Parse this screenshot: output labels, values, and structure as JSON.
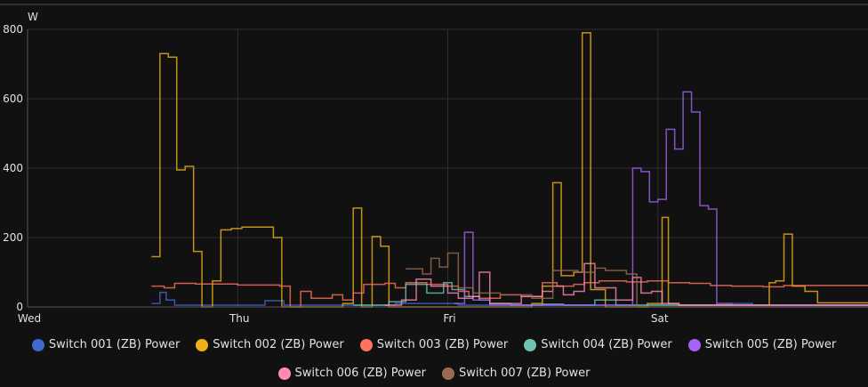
{
  "chart_data": {
    "type": "line",
    "step": true,
    "ylabel": "W",
    "ylim": [
      0,
      800
    ],
    "yticks": [
      0,
      200,
      400,
      600,
      800
    ],
    "xlim": [
      0,
      4
    ],
    "xticks": [
      {
        "x": 0,
        "label": "Wed"
      },
      {
        "x": 1,
        "label": "Thu"
      },
      {
        "x": 2,
        "label": "Fri"
      },
      {
        "x": 3,
        "label": "Sat"
      }
    ],
    "grid": true,
    "legend_position": "bottom",
    "series": [
      {
        "name": "Switch 001 (ZB) Power",
        "color": "#4269d0",
        "points": [
          [
            0.59,
            10
          ],
          [
            0.63,
            42
          ],
          [
            0.66,
            20
          ],
          [
            0.7,
            5
          ],
          [
            1.1,
            5
          ],
          [
            1.13,
            18
          ],
          [
            1.22,
            5
          ],
          [
            1.6,
            5
          ],
          [
            1.75,
            10
          ],
          [
            2.05,
            5
          ],
          [
            2.5,
            5
          ],
          [
            3.35,
            10
          ],
          [
            3.45,
            5
          ],
          [
            4,
            5
          ]
        ]
      },
      {
        "name": "Switch 002 (ZB) Power",
        "color": "#efb118",
        "points": [
          [
            0.59,
            145
          ],
          [
            0.63,
            730
          ],
          [
            0.67,
            720
          ],
          [
            0.71,
            395
          ],
          [
            0.75,
            405
          ],
          [
            0.79,
            160
          ],
          [
            0.83,
            0
          ],
          [
            0.88,
            75
          ],
          [
            0.92,
            222
          ],
          [
            0.97,
            226
          ],
          [
            1.02,
            230
          ],
          [
            1.17,
            200
          ],
          [
            1.21,
            0
          ],
          [
            1.4,
            0
          ],
          [
            1.5,
            10
          ],
          [
            1.55,
            285
          ],
          [
            1.59,
            0
          ],
          [
            1.64,
            203
          ],
          [
            1.68,
            175
          ],
          [
            1.72,
            0
          ],
          [
            2.35,
            0
          ],
          [
            2.4,
            10
          ],
          [
            2.45,
            60
          ],
          [
            2.5,
            358
          ],
          [
            2.54,
            90
          ],
          [
            2.6,
            100
          ],
          [
            2.64,
            790
          ],
          [
            2.68,
            50
          ],
          [
            2.75,
            0
          ],
          [
            2.9,
            0
          ],
          [
            2.95,
            10
          ],
          [
            3.02,
            258
          ],
          [
            3.05,
            10
          ],
          [
            3.1,
            5
          ],
          [
            3.5,
            5
          ],
          [
            3.53,
            70
          ],
          [
            3.56,
            75
          ],
          [
            3.6,
            210
          ],
          [
            3.64,
            60
          ],
          [
            3.7,
            45
          ],
          [
            3.76,
            12
          ],
          [
            4,
            12
          ]
        ]
      },
      {
        "name": "Switch 003 (ZB) Power",
        "color": "#ff725c",
        "points": [
          [
            0.59,
            60
          ],
          [
            0.65,
            55
          ],
          [
            0.7,
            68
          ],
          [
            0.8,
            66
          ],
          [
            0.9,
            66
          ],
          [
            1.0,
            63
          ],
          [
            1.1,
            63
          ],
          [
            1.2,
            60
          ],
          [
            1.25,
            0
          ],
          [
            1.3,
            45
          ],
          [
            1.35,
            25
          ],
          [
            1.45,
            35
          ],
          [
            1.5,
            20
          ],
          [
            1.55,
            40
          ],
          [
            1.6,
            65
          ],
          [
            1.7,
            68
          ],
          [
            1.75,
            55
          ],
          [
            1.8,
            70
          ],
          [
            1.9,
            65
          ],
          [
            2.0,
            60
          ],
          [
            2.05,
            45
          ],
          [
            2.1,
            30
          ],
          [
            2.15,
            25
          ],
          [
            2.25,
            35
          ],
          [
            2.35,
            30
          ],
          [
            2.45,
            70
          ],
          [
            2.52,
            60
          ],
          [
            2.6,
            65
          ],
          [
            2.65,
            70
          ],
          [
            2.72,
            75
          ],
          [
            2.85,
            72
          ],
          [
            2.95,
            75
          ],
          [
            3.05,
            70
          ],
          [
            3.15,
            68
          ],
          [
            3.25,
            62
          ],
          [
            3.35,
            60
          ],
          [
            3.5,
            58
          ],
          [
            3.6,
            62
          ],
          [
            4,
            62
          ]
        ]
      },
      {
        "name": "Switch 004 (ZB) Power",
        "color": "#6cc5b0",
        "points": [
          [
            1.55,
            5
          ],
          [
            1.72,
            15
          ],
          [
            1.8,
            65
          ],
          [
            1.9,
            40
          ],
          [
            1.98,
            70
          ],
          [
            2.02,
            50
          ],
          [
            2.08,
            30
          ],
          [
            2.15,
            20
          ],
          [
            2.2,
            10
          ],
          [
            2.3,
            5
          ],
          [
            2.45,
            8
          ],
          [
            2.55,
            5
          ],
          [
            2.7,
            20
          ],
          [
            2.8,
            5
          ],
          [
            3.0,
            5
          ],
          [
            3.3,
            5
          ],
          [
            3.4,
            5
          ],
          [
            4,
            5
          ]
        ]
      },
      {
        "name": "Switch 005 (ZB) Power",
        "color": "#a463f2",
        "points": [
          [
            2.03,
            10
          ],
          [
            2.08,
            215
          ],
          [
            2.12,
            20
          ],
          [
            2.2,
            5
          ],
          [
            2.5,
            5
          ],
          [
            2.84,
            5
          ],
          [
            2.88,
            400
          ],
          [
            2.92,
            390
          ],
          [
            2.96,
            303
          ],
          [
            3.0,
            310
          ],
          [
            3.04,
            512
          ],
          [
            3.08,
            455
          ],
          [
            3.12,
            620
          ],
          [
            3.16,
            562
          ],
          [
            3.2,
            292
          ],
          [
            3.24,
            282
          ],
          [
            3.28,
            10
          ],
          [
            3.35,
            5
          ],
          [
            4,
            5
          ]
        ]
      },
      {
        "name": "Switch 006 (ZB) Power",
        "color": "#ff8ab7",
        "points": [
          [
            1.7,
            5
          ],
          [
            1.78,
            20
          ],
          [
            1.85,
            80
          ],
          [
            1.92,
            60
          ],
          [
            2.0,
            40
          ],
          [
            2.05,
            25
          ],
          [
            2.12,
            30
          ],
          [
            2.15,
            100
          ],
          [
            2.2,
            10
          ],
          [
            2.35,
            30
          ],
          [
            2.45,
            45
          ],
          [
            2.5,
            60
          ],
          [
            2.55,
            35
          ],
          [
            2.6,
            45
          ],
          [
            2.65,
            125
          ],
          [
            2.7,
            55
          ],
          [
            2.8,
            20
          ],
          [
            2.88,
            85
          ],
          [
            2.92,
            40
          ],
          [
            2.97,
            45
          ],
          [
            3.02,
            10
          ],
          [
            3.1,
            5
          ],
          [
            4,
            5
          ]
        ]
      },
      {
        "name": "Switch 007 (ZB) Power",
        "color": "#9c6b4e",
        "points": [
          [
            1.8,
            110
          ],
          [
            1.88,
            95
          ],
          [
            1.92,
            140
          ],
          [
            1.96,
            115
          ],
          [
            2.0,
            155
          ],
          [
            2.05,
            55
          ],
          [
            2.12,
            40
          ],
          [
            2.25,
            35
          ],
          [
            2.4,
            25
          ],
          [
            2.5,
            105
          ],
          [
            2.62,
            100
          ],
          [
            2.7,
            112
          ],
          [
            2.75,
            105
          ],
          [
            2.85,
            95
          ],
          [
            2.9,
            0
          ],
          [
            3.2,
            0
          ],
          [
            4,
            0
          ]
        ]
      }
    ]
  }
}
